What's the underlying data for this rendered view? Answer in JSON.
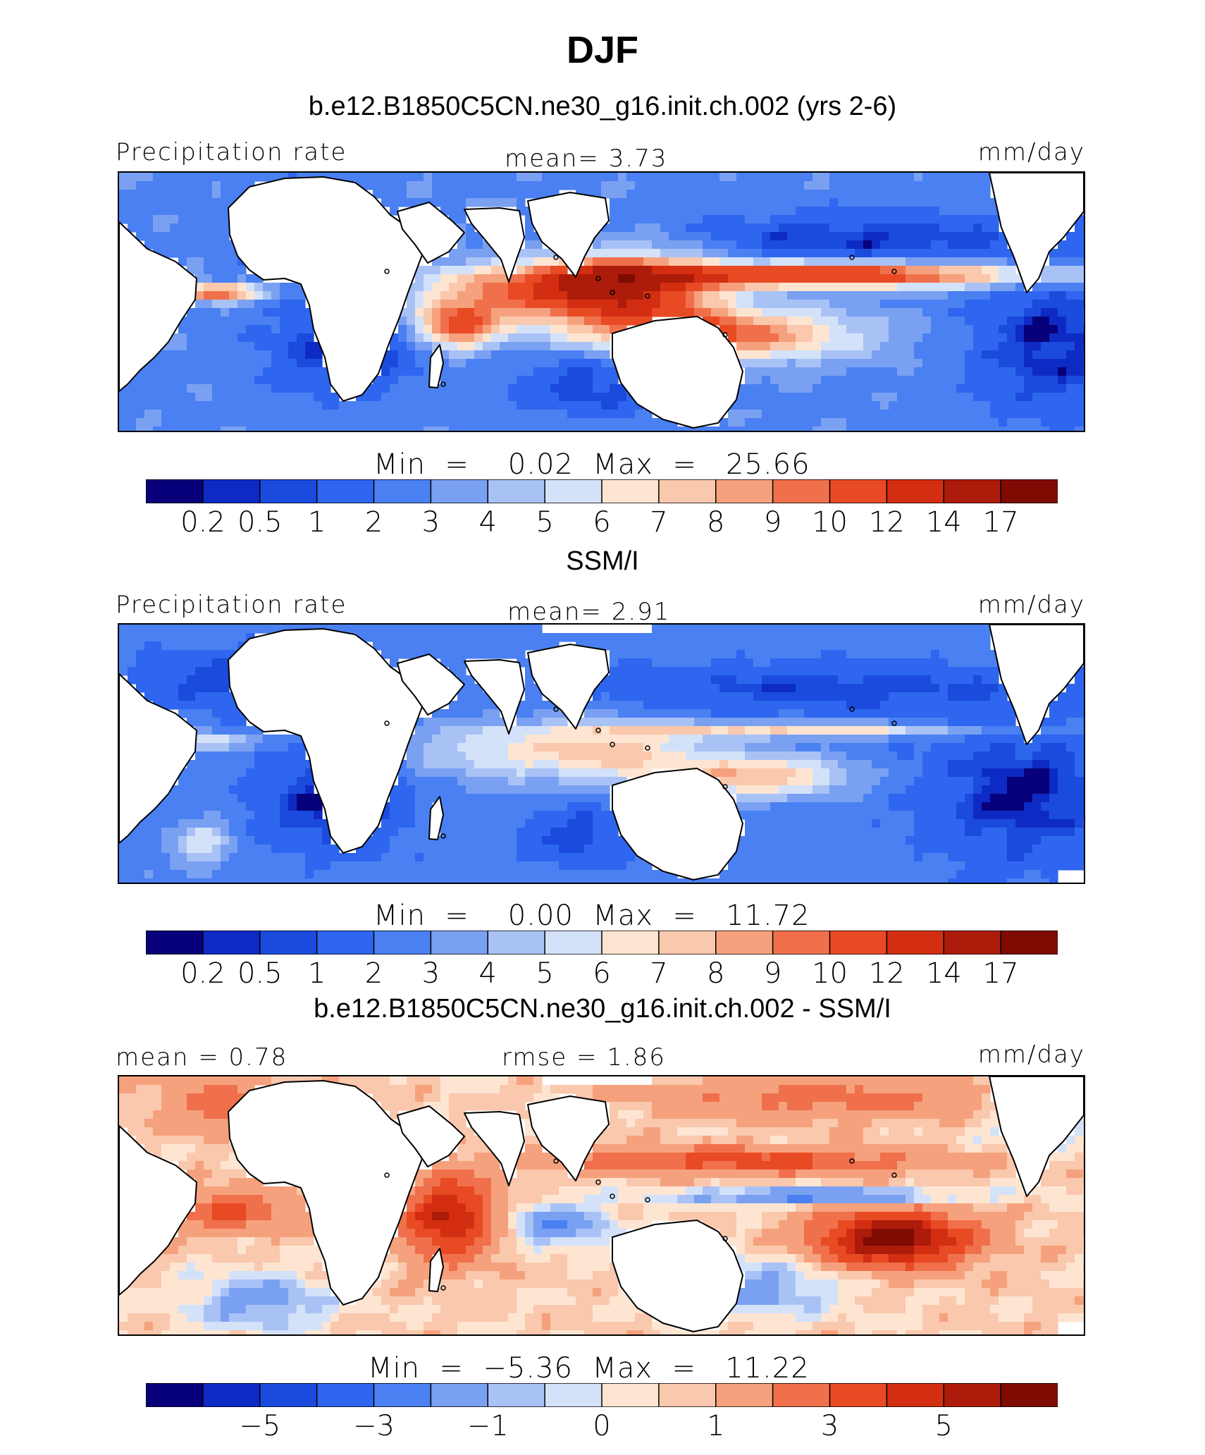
{
  "chart_data": {
    "type": "heatmap",
    "title": "DJF",
    "panels": [
      {
        "subtitle": "b.e12.B1850C5CN.ne30_g16.init.ch.002 (yrs 2-6)",
        "left_label": "Precipitation rate",
        "center_label": "mean=   3.73",
        "right_label": "mm/day",
        "min_max": "Min  =    0.02  Max  =   25.66",
        "mean": 3.73,
        "min": 0.02,
        "max": 25.66,
        "palette": "precip",
        "tick_labels": [
          "0.2",
          "0.5",
          "1",
          "2",
          "3",
          "4",
          "5",
          "6",
          "7",
          "8",
          "9",
          "10",
          "12",
          "14",
          "17"
        ],
        "tick_positions": [
          1,
          2,
          3,
          4,
          5,
          6,
          7,
          8,
          9,
          10,
          11,
          12,
          13,
          14,
          15
        ],
        "field": "model"
      },
      {
        "subtitle": "SSM/I",
        "left_label": "Precipitation rate",
        "center_label": "mean=   2.91",
        "right_label": "mm/day",
        "min_max": "Min  =    0.00  Max  =   11.72",
        "mean": 2.91,
        "min": 0.0,
        "max": 11.72,
        "palette": "precip",
        "tick_labels": [
          "0.2",
          "0.5",
          "1",
          "2",
          "3",
          "4",
          "5",
          "6",
          "7",
          "8",
          "9",
          "10",
          "12",
          "14",
          "17"
        ],
        "tick_positions": [
          1,
          2,
          3,
          4,
          5,
          6,
          7,
          8,
          9,
          10,
          11,
          12,
          13,
          14,
          15
        ],
        "field": "obs"
      },
      {
        "subtitle": "b.e12.B1850C5CN.ne30_g16.init.ch.002 - SSM/I",
        "left_label": "mean =   0.78",
        "center_label": "rmse =   1.86",
        "right_label": "mm/day",
        "min_max": "Min  =  −5.36  Max  =   11.22",
        "mean": 0.78,
        "rmse": 1.86,
        "min": -5.36,
        "max": 11.22,
        "palette": "diff",
        "tick_labels": [
          "−5",
          "−3",
          "−1",
          "0",
          "1",
          "3",
          "5"
        ],
        "tick_positions": [
          2,
          4,
          6,
          8,
          10,
          12,
          14
        ],
        "field": "diff"
      }
    ],
    "colors": [
      "#07007a",
      "#0d2bc4",
      "#1b4bdd",
      "#2f66ef",
      "#4a80f2",
      "#7aa0f2",
      "#a9c2f6",
      "#d3e2f8",
      "#fde5d2",
      "#fac8ad",
      "#f6a17d",
      "#f0704c",
      "#e84a24",
      "#d42e12",
      "#ad1b0a",
      "#7f0b03"
    ]
  }
}
